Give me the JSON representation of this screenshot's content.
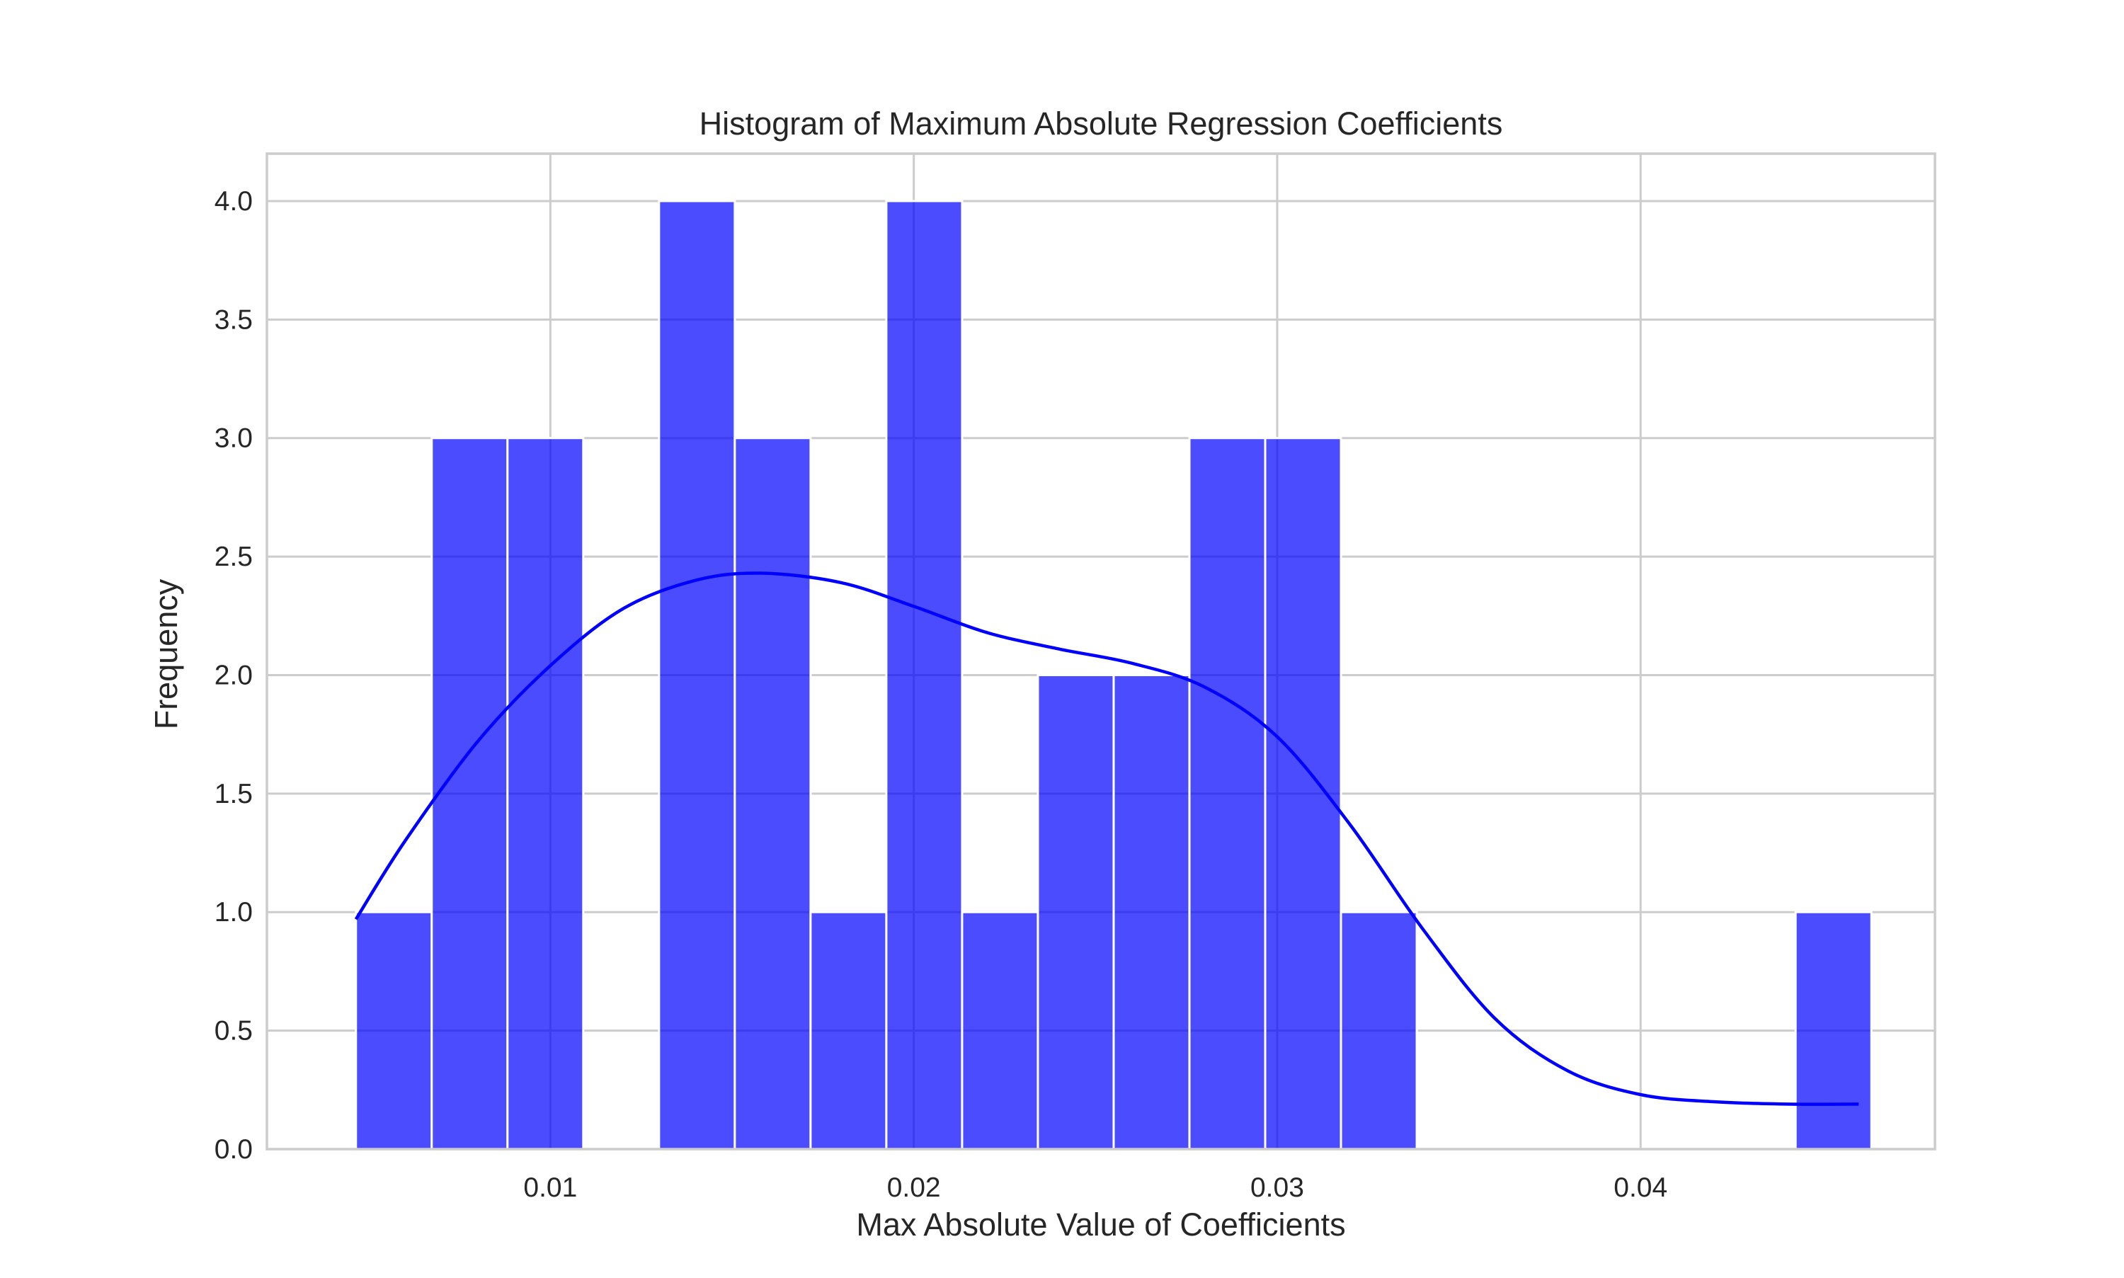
{
  "chart_data": {
    "type": "bar",
    "title": "Histogram of Maximum Absolute Regression Coefficients",
    "xlabel": "Max Absolute Value of Coefficients",
    "ylabel": "Frequency",
    "xlim": [
      0.0022,
      0.0481
    ],
    "ylim": [
      0,
      4.2
    ],
    "x_ticks": [
      {
        "value": 0.01,
        "label": "0.01"
      },
      {
        "value": 0.02,
        "label": "0.02"
      },
      {
        "value": 0.03,
        "label": "0.03"
      },
      {
        "value": 0.04,
        "label": "0.04"
      }
    ],
    "y_ticks": [
      {
        "value": 0.0,
        "label": "0.0"
      },
      {
        "value": 0.5,
        "label": "0.5"
      },
      {
        "value": 1.0,
        "label": "1.0"
      },
      {
        "value": 1.5,
        "label": "1.5"
      },
      {
        "value": 2.0,
        "label": "2.0"
      },
      {
        "value": 2.5,
        "label": "2.5"
      },
      {
        "value": 3.0,
        "label": "3.0"
      },
      {
        "value": 3.5,
        "label": "3.5"
      },
      {
        "value": 4.0,
        "label": "4.0"
      }
    ],
    "bins": {
      "start": 0.00465,
      "width": 0.002085,
      "counts": [
        1,
        3,
        3,
        0,
        4,
        3,
        1,
        4,
        1,
        2,
        2,
        3,
        3,
        1,
        0,
        0,
        0,
        0,
        0,
        1
      ]
    },
    "kde": {
      "x": [
        0.00465,
        0.006,
        0.008,
        0.01,
        0.012,
        0.014,
        0.0158,
        0.018,
        0.02,
        0.022,
        0.024,
        0.026,
        0.028,
        0.03,
        0.032,
        0.034,
        0.036,
        0.038,
        0.04,
        0.042,
        0.044,
        0.046
      ],
      "y": [
        0.97,
        1.3,
        1.72,
        2.04,
        2.28,
        2.4,
        2.43,
        2.39,
        2.29,
        2.18,
        2.11,
        2.05,
        1.95,
        1.74,
        1.37,
        0.93,
        0.55,
        0.33,
        0.23,
        0.2,
        0.19,
        0.19
      ]
    },
    "grid": true,
    "legend": "none",
    "colors": {
      "bar": "#0000ff",
      "bar_opacity": 0.7,
      "bar_edge": "#ffffff",
      "kde_line": "#0000ff",
      "grid": "#cccccc",
      "axes_edge": "#cccccc",
      "text": "#262626",
      "background": "#ffffff"
    }
  }
}
